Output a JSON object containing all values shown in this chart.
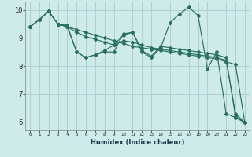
{
  "xlabel": "Humidex (Indice chaleur)",
  "bg_color": "#ceeaea",
  "grid_color": "#aacccc",
  "line_color": "#2a7060",
  "xlim": [
    -0.5,
    23.5
  ],
  "ylim": [
    5.7,
    10.3
  ],
  "xticks": [
    0,
    1,
    2,
    3,
    4,
    5,
    6,
    7,
    8,
    9,
    10,
    11,
    12,
    13,
    14,
    15,
    16,
    17,
    18,
    19,
    20,
    21,
    22,
    23
  ],
  "yticks": [
    6,
    7,
    8,
    9,
    10
  ],
  "series": [
    [
      9.4,
      9.65,
      9.95,
      9.5,
      9.45,
      8.5,
      8.3,
      8.4,
      8.5,
      8.5,
      9.15,
      9.2,
      8.5,
      8.3,
      8.65,
      9.55,
      9.85,
      10.1,
      9.8,
      7.9,
      8.5,
      6.3,
      6.15,
      5.98
    ],
    [
      9.4,
      9.65,
      9.95,
      9.5,
      9.4,
      9.3,
      9.2,
      9.1,
      9.0,
      8.9,
      8.8,
      8.7,
      8.65,
      8.6,
      8.55,
      8.5,
      8.45,
      8.4,
      8.35,
      8.3,
      8.25,
      8.15,
      8.05,
      5.98
    ],
    [
      9.4,
      9.65,
      9.95,
      9.5,
      9.4,
      9.2,
      9.05,
      8.95,
      8.85,
      8.75,
      8.9,
      8.85,
      8.75,
      8.65,
      8.6,
      8.55,
      8.5,
      8.45,
      8.4,
      8.35,
      8.3,
      8.2,
      6.3,
      5.98
    ],
    [
      9.4,
      9.65,
      9.95,
      9.5,
      9.4,
      8.5,
      8.3,
      8.4,
      8.55,
      8.75,
      9.1,
      9.2,
      8.55,
      8.35,
      8.7,
      8.65,
      8.6,
      8.55,
      8.5,
      8.45,
      8.4,
      8.3,
      6.2,
      5.98
    ]
  ]
}
